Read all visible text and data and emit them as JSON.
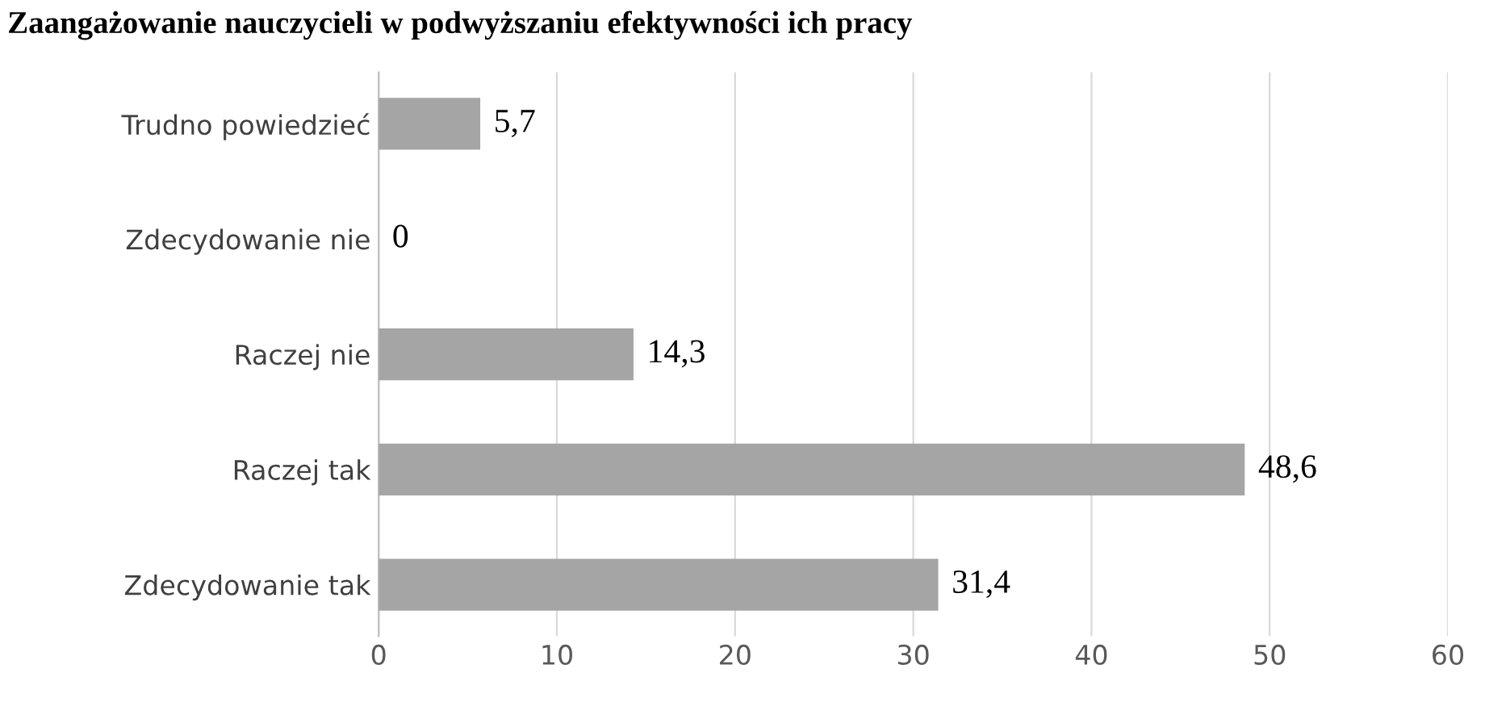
{
  "chart_data": {
    "type": "bar",
    "orientation": "horizontal",
    "title": "Zaangażowanie nauczycieli w podwyższaniu efektywności ich pracy",
    "categories": [
      "Trudno powiedzieć",
      "Zdecydowanie nie",
      "Raczej nie",
      "Raczej tak",
      "Zdecydowanie tak"
    ],
    "values": [
      5.7,
      0,
      14.3,
      48.6,
      31.4
    ],
    "value_labels": [
      "5,7",
      "0",
      "14,3",
      "48,6",
      "31,4"
    ],
    "color": "#a5a5a5",
    "xlim": [
      0,
      60
    ],
    "xticks": [
      0,
      10,
      20,
      30,
      40,
      50,
      60
    ],
    "grid": "x",
    "legend": false
  }
}
